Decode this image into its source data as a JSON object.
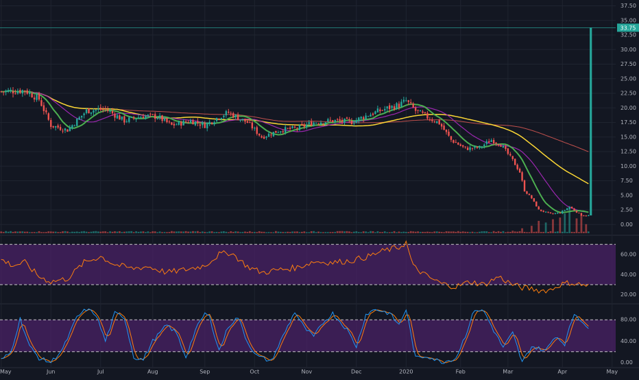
{
  "colors": {
    "background": "#131722",
    "grid": "#1f2430",
    "axis_text": "#b2b5be",
    "candle_up": "#26a69a",
    "candle_down": "#ef5350",
    "ma_fast": "#4caf50",
    "ma_mid": "#9c27b0",
    "ma_slow": "#fdd835",
    "ma_long": "#c0504d",
    "oscillator_band": "#4a2166",
    "rsi_line": "#ff7f0e",
    "stoch_k": "#2196f3",
    "stoch_d": "#ff7f0e",
    "price_tag": "#26a69a"
  },
  "chart_data": [
    {
      "type": "line",
      "panel": "price",
      "candlestick": true,
      "x_labels": [
        "May",
        "Jun",
        "Jul",
        "Aug",
        "Sep",
        "Oct",
        "Nov",
        "Dec",
        "2020",
        "Feb",
        "Mar",
        "Apr",
        "May"
      ],
      "x_tick_index": [
        0,
        21,
        42,
        64,
        86,
        107,
        129,
        150,
        171,
        194,
        214,
        237,
        258
      ],
      "y_ticks": [
        "0.00",
        "2.50",
        "5.00",
        "7.50",
        "10.00",
        "12.50",
        "15.00",
        "17.50",
        "20.00",
        "22.50",
        "25.00",
        "27.50",
        "30.00",
        "32.50",
        "35.00",
        "37.50"
      ],
      "ylim": [
        -1.5,
        38.5
      ],
      "last_price_label": "33.75",
      "last_price": 33.75,
      "price_anchors": [
        [
          0,
          22.8
        ],
        [
          10,
          23.0
        ],
        [
          16,
          21.5
        ],
        [
          21,
          17.0
        ],
        [
          28,
          16.2
        ],
        [
          36,
          19.5
        ],
        [
          44,
          19.8
        ],
        [
          52,
          17.8
        ],
        [
          60,
          18.6
        ],
        [
          66,
          18.5
        ],
        [
          72,
          17.0
        ],
        [
          80,
          17.8
        ],
        [
          86,
          17.0
        ],
        [
          92,
          18.5
        ],
        [
          96,
          19.2
        ],
        [
          100,
          18.3
        ],
        [
          104,
          17.5
        ],
        [
          110,
          15.0
        ],
        [
          118,
          16.2
        ],
        [
          125,
          16.5
        ],
        [
          132,
          17.5
        ],
        [
          140,
          17.8
        ],
        [
          148,
          17.6
        ],
        [
          155,
          18.8
        ],
        [
          162,
          19.8
        ],
        [
          168,
          20.5
        ],
        [
          171,
          21.2
        ],
        [
          175,
          19.5
        ],
        [
          180,
          18.4
        ],
        [
          185,
          17.4
        ],
        [
          190,
          14.5
        ],
        [
          196,
          13.0
        ],
        [
          202,
          13.2
        ],
        [
          207,
          14.5
        ],
        [
          211,
          13.7
        ],
        [
          216,
          11.0
        ],
        [
          219,
          9.0
        ],
        [
          221,
          5.8
        ],
        [
          224,
          4.5
        ],
        [
          227,
          2.5
        ],
        [
          232,
          1.8
        ],
        [
          236,
          2.0
        ],
        [
          240,
          3.0
        ],
        [
          245,
          1.6
        ],
        [
          248,
          1.5
        ]
      ],
      "spike_value": 33.75,
      "volume_bars": [
        [
          216,
          0.3
        ],
        [
          220,
          0.6
        ],
        [
          224,
          0.9
        ],
        [
          227,
          1.5
        ],
        [
          230,
          1.3
        ],
        [
          233,
          1.7
        ],
        [
          236,
          1.9
        ],
        [
          238,
          2.4
        ],
        [
          240,
          3.3
        ],
        [
          243,
          1.8
        ],
        [
          245,
          2.2
        ],
        [
          247,
          1.1
        ]
      ]
    },
    {
      "type": "line",
      "panel": "rsi",
      "y_ticks": [
        "20.00",
        "40.00",
        "60.00"
      ],
      "ylim": [
        13,
        77
      ],
      "band": [
        30,
        70
      ],
      "rsi_anchors": [
        [
          0,
          55
        ],
        [
          5,
          49
        ],
        [
          10,
          52
        ],
        [
          16,
          38
        ],
        [
          21,
          33
        ],
        [
          28,
          36
        ],
        [
          35,
          52
        ],
        [
          42,
          58
        ],
        [
          48,
          50
        ],
        [
          55,
          46
        ],
        [
          62,
          48
        ],
        [
          70,
          42
        ],
        [
          78,
          45
        ],
        [
          86,
          49
        ],
        [
          92,
          60
        ],
        [
          97,
          62
        ],
        [
          104,
          48
        ],
        [
          110,
          42
        ],
        [
          118,
          45
        ],
        [
          125,
          47
        ],
        [
          132,
          53
        ],
        [
          140,
          52
        ],
        [
          148,
          54
        ],
        [
          155,
          58
        ],
        [
          162,
          64
        ],
        [
          168,
          67
        ],
        [
          171,
          72
        ],
        [
          174,
          48
        ],
        [
          180,
          38
        ],
        [
          186,
          31
        ],
        [
          192,
          28
        ],
        [
          198,
          33
        ],
        [
          204,
          30
        ],
        [
          210,
          38
        ],
        [
          216,
          30
        ],
        [
          220,
          27
        ],
        [
          224,
          26
        ],
        [
          228,
          24
        ],
        [
          232,
          25
        ],
        [
          236,
          30
        ],
        [
          240,
          32
        ],
        [
          245,
          30
        ],
        [
          248,
          29
        ]
      ]
    },
    {
      "type": "line",
      "panel": "stochastic",
      "y_ticks": [
        "0.00",
        "40.00",
        "80.00"
      ],
      "ylim": [
        -6,
        106
      ],
      "band": [
        20,
        80
      ],
      "stoch_anchors": [
        [
          0,
          5
        ],
        [
          4,
          18
        ],
        [
          8,
          82
        ],
        [
          12,
          30
        ],
        [
          16,
          8
        ],
        [
          21,
          0
        ],
        [
          26,
          25
        ],
        [
          32,
          85
        ],
        [
          36,
          100
        ],
        [
          40,
          90
        ],
        [
          44,
          40
        ],
        [
          48,
          92
        ],
        [
          52,
          85
        ],
        [
          56,
          10
        ],
        [
          60,
          5
        ],
        [
          64,
          40
        ],
        [
          70,
          70
        ],
        [
          74,
          55
        ],
        [
          78,
          10
        ],
        [
          82,
          60
        ],
        [
          86,
          92
        ],
        [
          88,
          85
        ],
        [
          92,
          22
        ],
        [
          96,
          68
        ],
        [
          100,
          85
        ],
        [
          104,
          38
        ],
        [
          108,
          12
        ],
        [
          114,
          2
        ],
        [
          118,
          40
        ],
        [
          124,
          95
        ],
        [
          128,
          65
        ],
        [
          132,
          48
        ],
        [
          136,
          75
        ],
        [
          140,
          92
        ],
        [
          146,
          62
        ],
        [
          150,
          30
        ],
        [
          154,
          90
        ],
        [
          158,
          100
        ],
        [
          164,
          92
        ],
        [
          168,
          70
        ],
        [
          171,
          100
        ],
        [
          175,
          8
        ],
        [
          180,
          12
        ],
        [
          186,
          0
        ],
        [
          192,
          8
        ],
        [
          196,
          50
        ],
        [
          200,
          100
        ],
        [
          204,
          95
        ],
        [
          208,
          60
        ],
        [
          212,
          28
        ],
        [
          216,
          55
        ],
        [
          220,
          0
        ],
        [
          224,
          30
        ],
        [
          230,
          22
        ],
        [
          234,
          50
        ],
        [
          238,
          35
        ],
        [
          242,
          92
        ],
        [
          246,
          75
        ],
        [
          248,
          60
        ]
      ]
    }
  ]
}
